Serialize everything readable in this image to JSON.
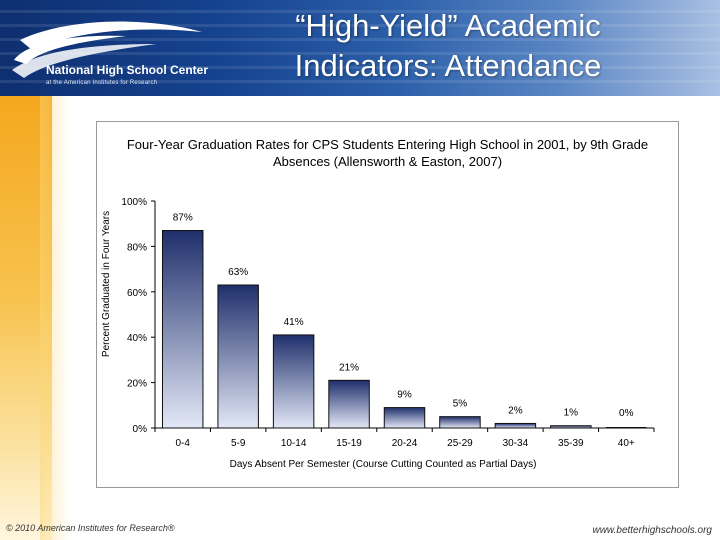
{
  "header": {
    "title_line1": "“High-Yield” Academic",
    "title_line2": "Indicators:  Attendance"
  },
  "logo": {
    "name": "National High School Center",
    "subtitle": "at the American Institutes for Research"
  },
  "colors": {
    "bar_fill_top": "#1f2f6b",
    "bar_fill_bottom": "#e3e8f7",
    "bar_stroke": "#101010",
    "accent_orange": "#f4a71e",
    "header_blue": "#15428e"
  },
  "chart_data": {
    "type": "bar",
    "title": "Four-Year Graduation Rates for CPS Students Entering High School in 2001, by 9th Grade Absences (Allensworth & Easton, 2007)",
    "xlabel": "Days Absent Per Semester (Course Cutting Counted as Partial Days)",
    "ylabel": "Percent Graduated in Four Years",
    "categories": [
      "0-4",
      "5-9",
      "10-14",
      "15-19",
      "20-24",
      "25-29",
      "30-34",
      "35-39",
      "40+"
    ],
    "values": [
      87,
      63,
      41,
      21,
      9,
      5,
      2,
      1,
      0
    ],
    "data_labels": [
      "87%",
      "63%",
      "41%",
      "21%",
      "9%",
      "5%",
      "2%",
      "1%",
      "0%"
    ],
    "ylim": [
      0,
      100
    ],
    "yticks": [
      0,
      20,
      40,
      60,
      80,
      100
    ],
    "ytick_labels": [
      "0%",
      "20%",
      "40%",
      "60%",
      "80%",
      "100%"
    ],
    "grid": false,
    "legend": "none"
  },
  "footer": {
    "copyright": "© 2010 American Institutes for Research®",
    "url": "www.betterhighschools.org"
  }
}
